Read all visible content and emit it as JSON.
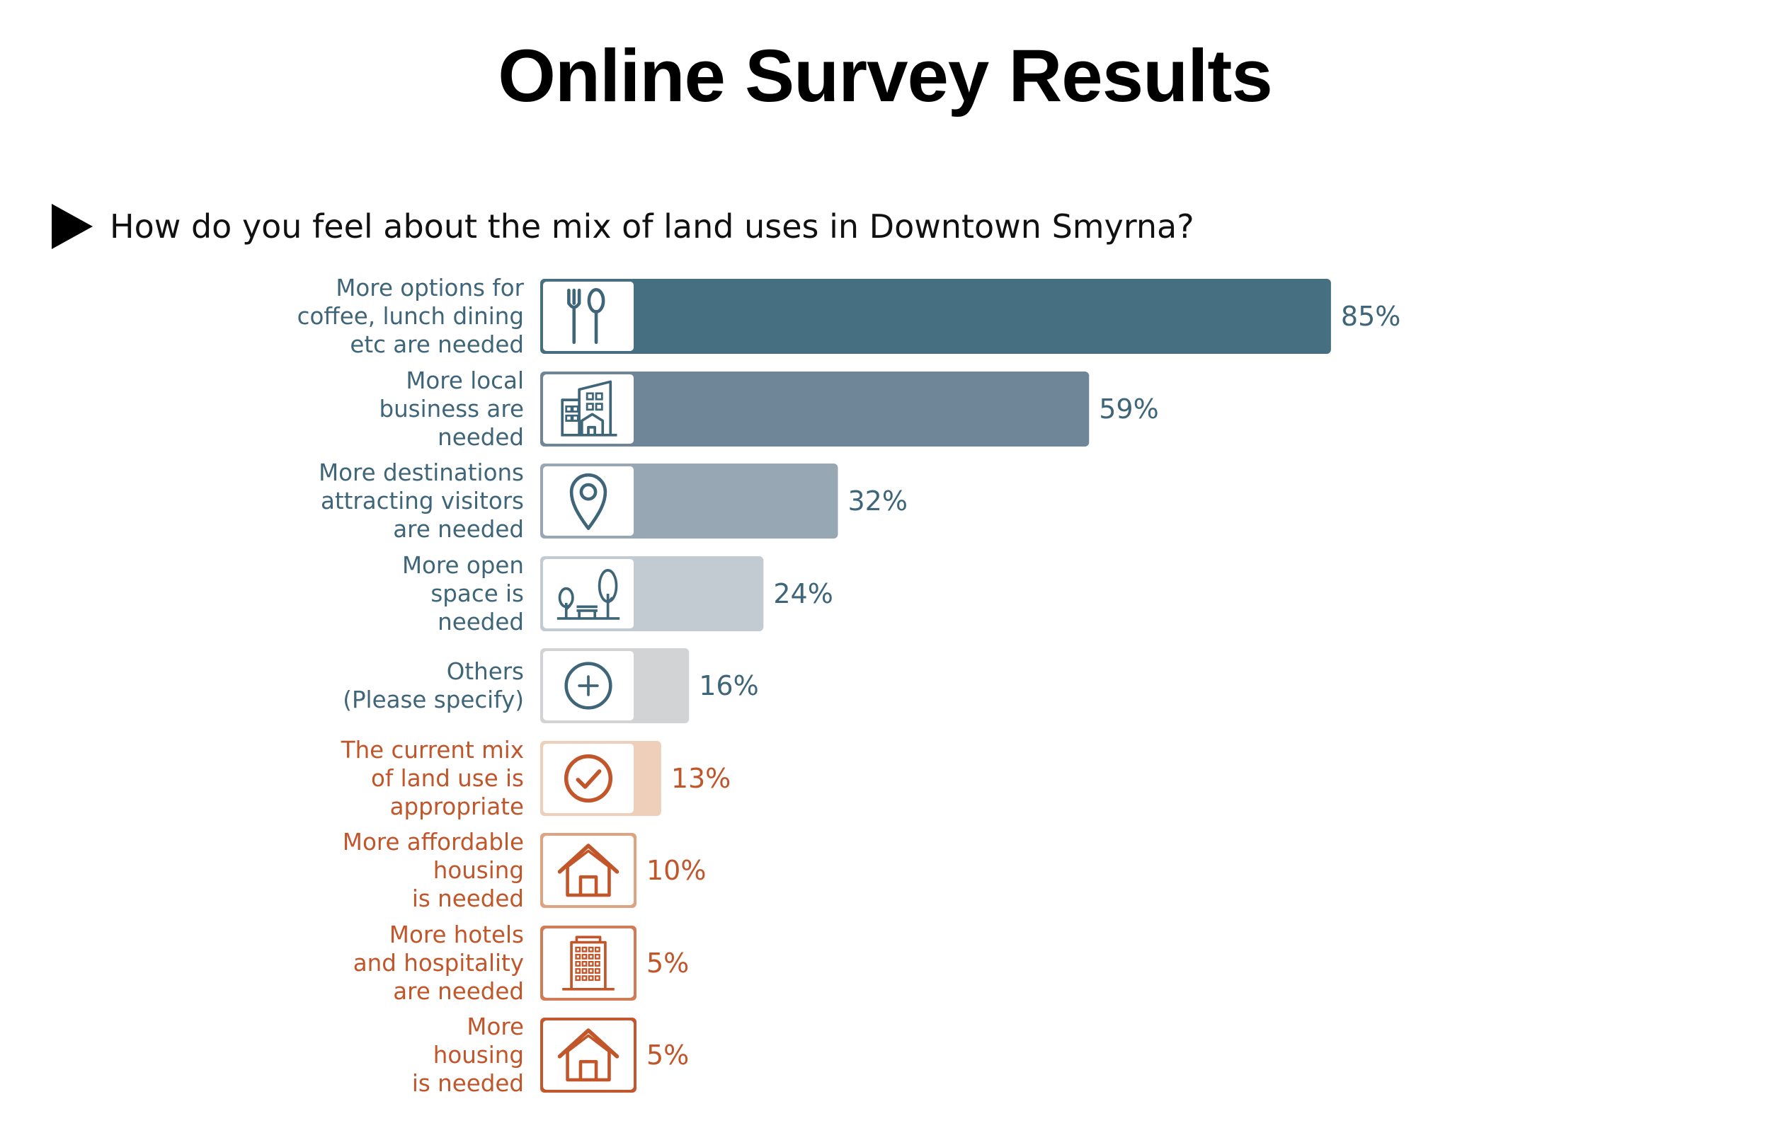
{
  "title": "Online Survey Results",
  "question": "How do you feel about the mix of land uses in Downtown Smyrna?",
  "colors": {
    "blue_text": "#3f6578",
    "orange_text": "#c1562a"
  },
  "chart_data": {
    "type": "bar",
    "orientation": "horizontal",
    "unit": "%",
    "xlim": [
      0,
      100
    ],
    "categories": [
      "More options for coffee, lunch dining etc are needed",
      "More local business are needed",
      "More destinations attracting visitors are needed",
      "More open space is needed",
      "Others (Please specify)",
      "The current mix of land use is appropriate",
      "More affordable housing is needed",
      "More hotels and hospitality are needed",
      "More housing is needed"
    ],
    "label_lines": [
      [
        "More options for",
        "coffee, lunch dining",
        "etc are needed"
      ],
      [
        "More local",
        "business are",
        "needed"
      ],
      [
        "More destinations",
        "attracting visitors",
        "are needed"
      ],
      [
        "More open",
        "space is",
        "needed"
      ],
      [
        "Others",
        "(Please specify)"
      ],
      [
        "The current mix",
        "of land use is",
        "appropriate"
      ],
      [
        "More affordable",
        "housing",
        "is needed"
      ],
      [
        "More hotels",
        "and hospitality",
        "are needed"
      ],
      [
        "More",
        "housing",
        "is needed"
      ]
    ],
    "values": [
      85,
      59,
      32,
      24,
      16,
      13,
      10,
      5,
      5
    ],
    "value_labels": [
      "85%",
      "59%",
      "32%",
      "24%",
      "16%",
      "13%",
      "10%",
      "5%",
      "5%"
    ],
    "icons": [
      "fork-spoon-icon",
      "buildings-icon",
      "map-pin-icon",
      "park-trees-icon",
      "plus-circle-icon",
      "check-circle-icon",
      "house-icon",
      "hotel-building-icon",
      "house-icon"
    ],
    "bar_colors": [
      "#466f82",
      "#6f8699",
      "#97a8b4",
      "#c3cbd2",
      "#d2d3d5",
      "#edcfba",
      "#dea383",
      "#d07d57",
      "#c3582f"
    ],
    "text_colors": [
      "#3f6578",
      "#3f6578",
      "#3f6578",
      "#3f6578",
      "#3f6578",
      "#c1562a",
      "#c1562a",
      "#c1562a",
      "#c1562a"
    ]
  }
}
